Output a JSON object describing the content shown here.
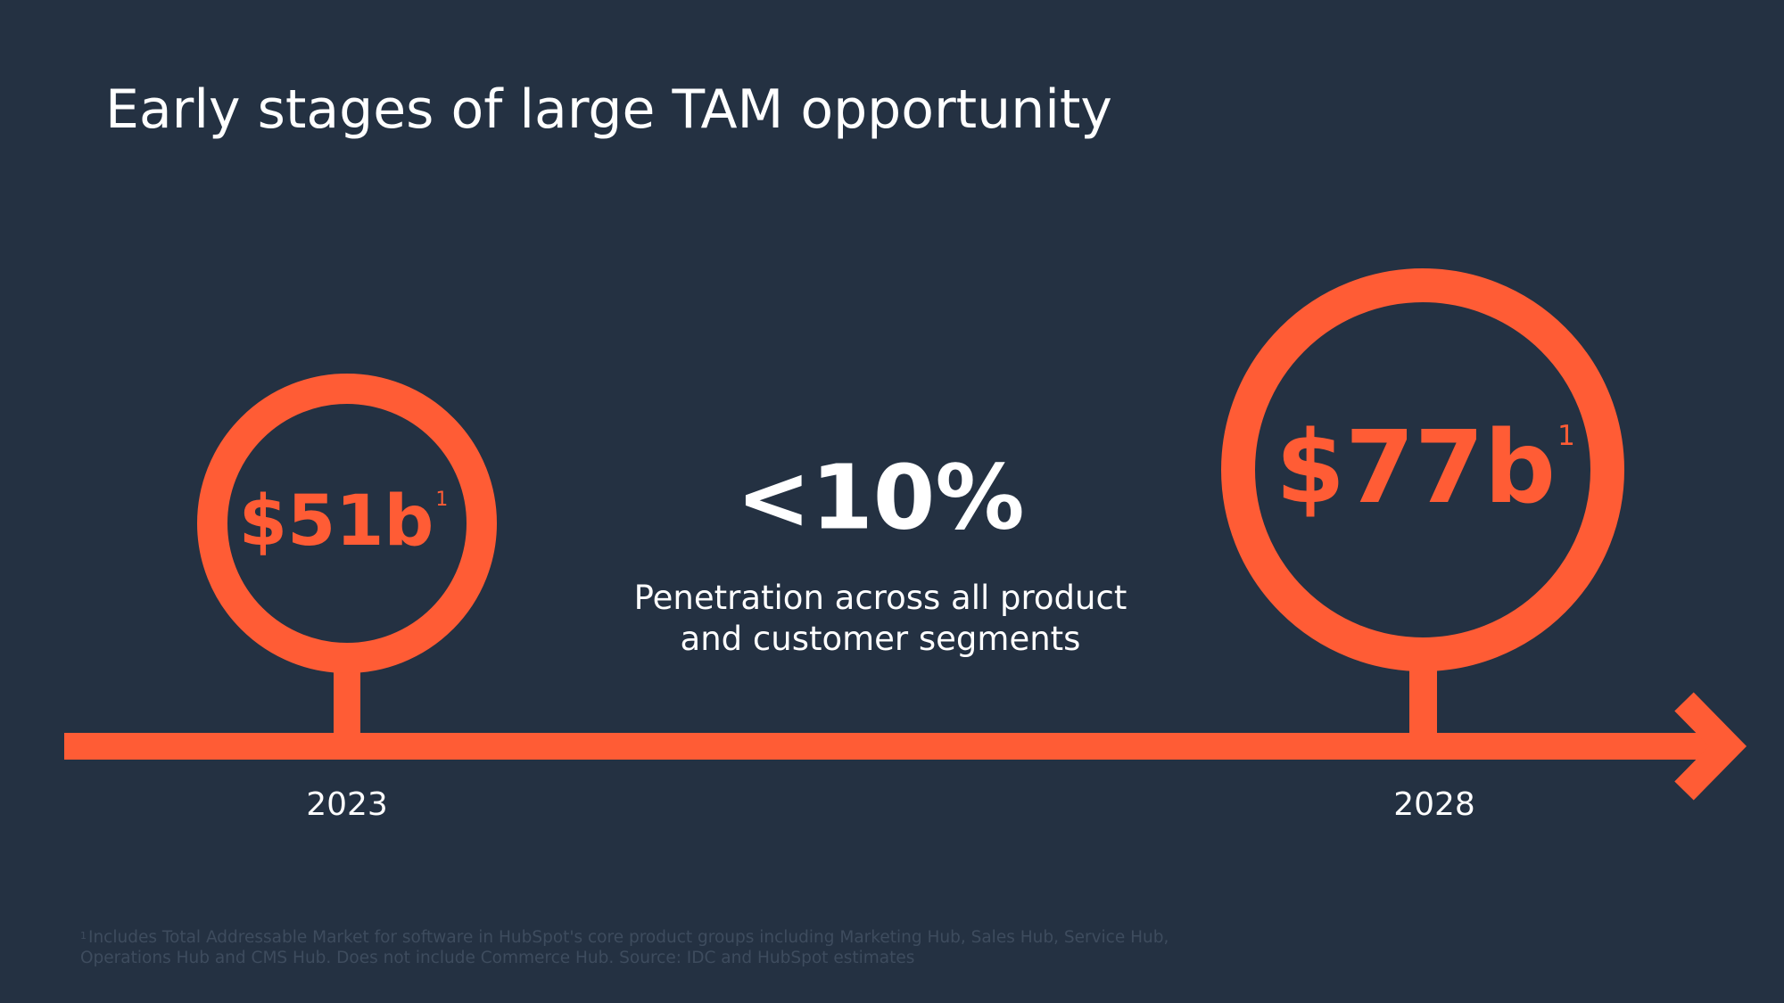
{
  "slide": {
    "title": "Early stages of large TAM opportunity",
    "accent_color": "#ff5c35",
    "background_color": "#243142"
  },
  "markers": [
    {
      "year": "2023",
      "value": "$51b",
      "footnote_ref": "1"
    },
    {
      "year": "2028",
      "value": "$77b",
      "footnote_ref": "1"
    }
  ],
  "center": {
    "stat": "<10%",
    "description_line1": "Penetration across all product",
    "description_line2": "and customer segments"
  },
  "footnote": {
    "ref": "1",
    "text": "Includes Total Addressable Market for software in HubSpot's core product groups including Marketing Hub, Sales Hub, Service Hub, Operations Hub and CMS Hub. Does not include Commerce Hub. Source: IDC and HubSpot estimates"
  }
}
